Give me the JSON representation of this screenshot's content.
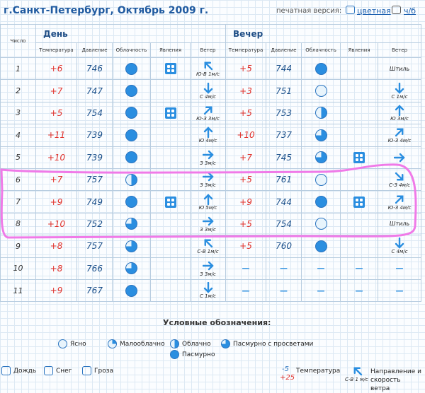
{
  "header": {
    "title": "г.Санкт-Петербург, Октябрь 2009 г.",
    "print_label": "печатная версия:",
    "print_color": "цветная",
    "print_bw": "ч/б"
  },
  "table": {
    "day_column": "Число",
    "group_day": "День",
    "group_evening": "Вечер",
    "columns": [
      "Температура",
      "Давление",
      "Облачность",
      "Явления",
      "Ветер"
    ],
    "rows": [
      {
        "day": 1,
        "d_temp": "+6",
        "d_press": 746,
        "d_wind": "Ю-В 1м/с",
        "e_temp": "+5",
        "e_press": 744,
        "e_wind": "Штиль"
      },
      {
        "day": 2,
        "d_temp": "+7",
        "d_press": 747,
        "d_wind": "С 4м/с",
        "e_temp": "+3",
        "e_press": 751,
        "e_wind": "С 1м/с"
      },
      {
        "day": 3,
        "d_temp": "+5",
        "d_press": 754,
        "d_wind": "Ю-З 3м/с",
        "e_temp": "+5",
        "e_press": 753,
        "e_wind": "Ю 3м/с"
      },
      {
        "day": 4,
        "d_temp": "+11",
        "d_press": 739,
        "d_wind": "Ю 4м/с",
        "e_temp": "+10",
        "e_press": 737,
        "e_wind": "Ю-З 4м/с"
      },
      {
        "day": 5,
        "d_temp": "+10",
        "d_press": 739,
        "d_wind": "З 3м/с",
        "e_temp": "+7",
        "e_press": 745
      },
      {
        "day": 6,
        "d_temp": "+7",
        "d_press": 757,
        "d_wind": "З 3м/с",
        "e_temp": "+5",
        "e_press": 761,
        "e_wind": "С-З 4м/с"
      },
      {
        "day": 7,
        "d_temp": "+9",
        "d_press": 749,
        "d_wind": "Ю 5м/с",
        "e_temp": "+9",
        "e_press": 744,
        "e_wind": "Ю-З 4м/с"
      },
      {
        "day": 8,
        "d_temp": "+10",
        "d_press": 752,
        "d_wind": "З 3м/с",
        "e_temp": "+5",
        "e_press": 754,
        "e_wind": "Штиль"
      },
      {
        "day": 9,
        "d_temp": "+8",
        "d_press": 757,
        "d_wind": "С-В 1м/с",
        "e_temp": "+5",
        "e_press": 760,
        "e_wind": "С 4м/с"
      },
      {
        "day": 10,
        "d_temp": "+8",
        "d_press": 766,
        "d_wind": "З 3м/с",
        "e_temp": "—",
        "e_press": "—",
        "e_cloud": "—",
        "e_phen": "—",
        "e_wind": "—"
      },
      {
        "day": 11,
        "d_temp": "+9",
        "d_press": 767,
        "d_wind": "С 1м/с",
        "e_temp": "—",
        "e_press": "—",
        "e_cloud": "—",
        "e_phen": "—",
        "e_wind": "—"
      }
    ]
  },
  "legend": {
    "title": "Условные обозначения:",
    "clouds": [
      "Ясно",
      "Малооблачно",
      "Облачно",
      "Пасмурно с просветами",
      "Пасмурно"
    ],
    "rain": "Дождь",
    "snow": "Снег",
    "storm": "Гроза",
    "temp_label": "Температура",
    "temp_day": "-5",
    "temp_evening": "+25",
    "wind_label": "Направление и скорость ветра",
    "wind_sample": "С-В 1 м/с"
  }
}
